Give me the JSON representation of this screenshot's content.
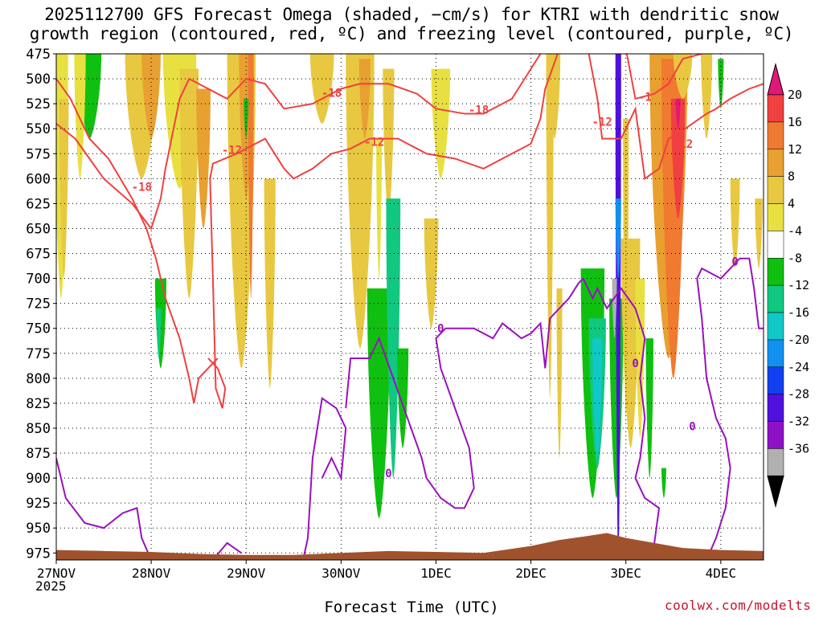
{
  "title_line1": "2025112700 GFS Forecast Omega (shaded, −cm/s) for KTRI with dendritic snow",
  "title_line2": "growth region (contoured, red, ºC) and freezing level (contoured, purple, ºC)",
  "xlabel": "Forecast Time (UTC)",
  "credit": "coolwx.com/modelts",
  "year_label": "2025",
  "colors": {
    "red_contour": "#f04040",
    "purple_contour": "#9a10c0",
    "ground": "#a0522d"
  },
  "chart_data": {
    "type": "heatmap",
    "x_ticks": [
      "27NOV",
      "28NOV",
      "29NOV",
      "30NOV",
      "1DEC",
      "2DEC",
      "3DEC",
      "4DEC"
    ],
    "x_range_days": [
      0,
      7.45
    ],
    "y_ticks": [
      475,
      500,
      525,
      550,
      575,
      600,
      625,
      650,
      675,
      700,
      725,
      750,
      775,
      800,
      825,
      850,
      875,
      900,
      925,
      950,
      975
    ],
    "y_range_hpa": [
      475,
      982
    ],
    "grid": true,
    "colorbar": {
      "labels": [
        "20",
        "16",
        "12",
        "8",
        "4",
        "-4",
        "-8",
        "-12",
        "-16",
        "-20",
        "-24",
        "-28",
        "-32",
        "-36"
      ],
      "colors": [
        "#e01878",
        "#f04040",
        "#f07a30",
        "#e8a030",
        "#e8c840",
        "#e8e040",
        "#ffffff",
        "#10c010",
        "#10c880",
        "#10c8c8",
        "#1090f0",
        "#1040f0",
        "#5010e0",
        "#9010c8",
        "#b0b0b0",
        "#000000"
      ]
    },
    "contour_labels": [
      {
        "text": "-18",
        "x_day": 0.9,
        "p": 608
      },
      {
        "text": "-12",
        "x_day": 1.85,
        "p": 571
      },
      {
        "text": "-18",
        "x_day": 2.9,
        "p": 514
      },
      {
        "text": "-12",
        "x_day": 3.35,
        "p": 563
      },
      {
        "text": "-18",
        "x_day": 4.45,
        "p": 531
      },
      {
        "text": "-12",
        "x_day": 5.75,
        "p": 543
      },
      {
        "text": "-1",
        "x_day": 6.2,
        "p": 518
      },
      {
        "text": "-12",
        "x_day": 6.6,
        "p": 565
      },
      {
        "text": "0",
        "x_day": 4.05,
        "p": 750
      },
      {
        "text": "0",
        "x_day": 6.1,
        "p": 785
      },
      {
        "text": "0",
        "x_day": 6.7,
        "p": 848
      },
      {
        "text": "0",
        "x_day": 3.5,
        "p": 895
      },
      {
        "text": "0",
        "x_day": 7.15,
        "p": 683
      }
    ]
  }
}
